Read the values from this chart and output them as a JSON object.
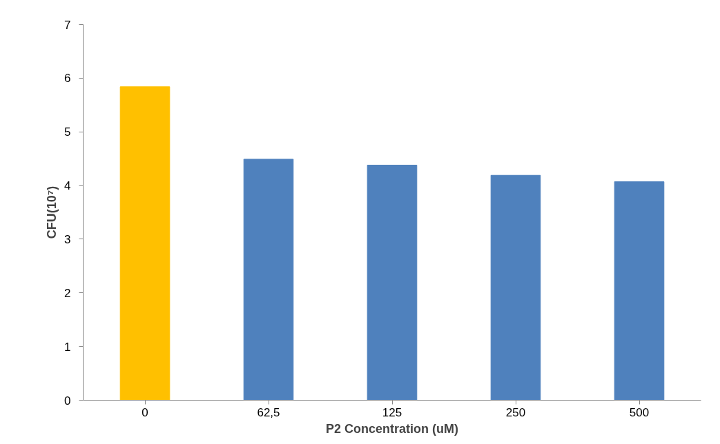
{
  "chart_data": {
    "type": "bar",
    "xlabel": "P2 Concentration (uM)",
    "ylabel": "CFU(10⁷)",
    "categories": [
      "0",
      "62,5",
      "125",
      "250",
      "500"
    ],
    "values": [
      5.84,
      4.49,
      4.38,
      4.19,
      4.07
    ],
    "colors": [
      "#ffc000",
      "#4f81bd",
      "#4f81bd",
      "#4f81bd",
      "#4f81bd"
    ],
    "ylim": [
      0,
      7
    ],
    "yticks": [
      0,
      1,
      2,
      3,
      4,
      5,
      6,
      7
    ],
    "grid": false
  }
}
